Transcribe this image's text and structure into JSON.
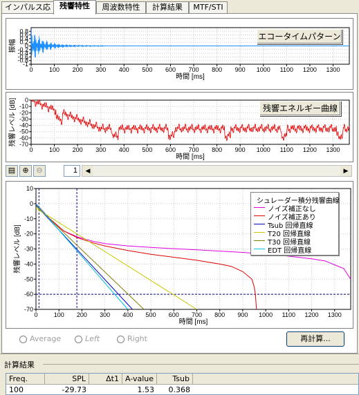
{
  "tabs": [
    {
      "label": "インパルス応答"
    },
    {
      "label": "残響特性"
    },
    {
      "label": "周波数特性"
    },
    {
      "label": "計算結果"
    },
    {
      "label": "MTF/STI"
    }
  ],
  "active_tab": "残響特性",
  "plot1": {
    "button_label": "エコータイムパターン",
    "xlabel": "時間 [ms]",
    "ylabel": "振幅",
    "yticks": [
      "0.8",
      "0.6",
      "0.4",
      "0.2",
      "0",
      "-0.2",
      "-0.4",
      "-0.6",
      "-0.8",
      "-1"
    ],
    "xticks": [
      "0",
      "100",
      "200",
      "300",
      "400",
      "500",
      "600",
      "700",
      "800",
      "900",
      "1000",
      "1100",
      "1200",
      "1300"
    ],
    "color": "#1e90ff"
  },
  "plot2": {
    "button_label": "残響エネルギー曲線",
    "xlabel": "時間 [ms]",
    "ylabel": "残響レベル [dB]",
    "yticks": [
      "0",
      "-10",
      "-20",
      "-30",
      "-40",
      "-50",
      "-60",
      "-70"
    ],
    "xticks": [
      "0",
      "100",
      "200",
      "300",
      "400",
      "500",
      "600",
      "700",
      "800",
      "900",
      "1000",
      "1100",
      "1200",
      "1300"
    ],
    "color": "#e00000"
  },
  "toolbar": {
    "page_value": "1",
    "fit_icon": "fit-window-icon",
    "zoom_in_icon": "zoom-in-icon",
    "zoom_out_icon": "zoom-out-icon"
  },
  "chart_data": {
    "type": "line",
    "title": "シュレーダー積分残響曲線",
    "xlabel": "時間 [ms]",
    "ylabel": "残響レベル [dB]",
    "xlim": [
      0,
      1370
    ],
    "ylim": [
      -70,
      10
    ],
    "yticks": [
      "10",
      "0",
      "-10",
      "-20",
      "-30",
      "-40",
      "-50",
      "-60",
      "-70"
    ],
    "xticks": [
      "0",
      "100",
      "200",
      "300",
      "400",
      "500",
      "600",
      "700",
      "800",
      "900",
      "1000",
      "1100",
      "1200",
      "1300"
    ],
    "legend_position": "top-right",
    "markers": {
      "vline_ms": [
        13,
        178
      ],
      "hline_db": -60
    },
    "series": [
      {
        "name": "ノイズ補正なし",
        "color": "#e000e0",
        "x": [
          0,
          60,
          120,
          180,
          250,
          300,
          400,
          500,
          600,
          700,
          800,
          900,
          1000,
          1100,
          1200,
          1260,
          1300,
          1340,
          1370
        ],
        "y": [
          0,
          -10,
          -18,
          -22,
          -25,
          -26.5,
          -28,
          -29,
          -29.8,
          -30.6,
          -31.4,
          -32.3,
          -33.4,
          -34.8,
          -36.5,
          -38,
          -40.5,
          -43,
          -50
        ]
      },
      {
        "name": "ノイズ補正あり",
        "color": "#e00000",
        "x": [
          0,
          60,
          120,
          180,
          250,
          300,
          400,
          500,
          600,
          700,
          800,
          850,
          900,
          940,
          950,
          955,
          960
        ],
        "y": [
          0,
          -10,
          -18,
          -22.5,
          -26,
          -28,
          -31,
          -33.5,
          -35.5,
          -37.5,
          -40,
          -41.5,
          -45,
          -50,
          -55,
          -60,
          -70
        ]
      },
      {
        "name": "Tsub 回帰直線",
        "color": "#0000c0",
        "x": [
          0,
          420
        ],
        "y": [
          -1,
          -70
        ]
      },
      {
        "name": "T20 回帰直線",
        "color": "#c8c800",
        "x": [
          0,
          700
        ],
        "y": [
          -3,
          -70
        ]
      },
      {
        "name": "T30 回帰直線",
        "color": "#808000",
        "x": [
          0,
          470
        ],
        "y": [
          -1.5,
          -70
        ]
      },
      {
        "name": "EDT 回帰直線",
        "color": "#00c0e0",
        "x": [
          0,
          400
        ],
        "y": [
          0,
          -70
        ]
      }
    ]
  },
  "options": {
    "average_label": "Average",
    "left_label": "Left",
    "right_label": "Right",
    "recalc_label": "再計算..."
  },
  "results": {
    "title": "計算結果",
    "columns": [
      "Freq.",
      "SPL",
      "Δt1",
      "A-value",
      "Tsub"
    ],
    "row": [
      "100",
      "-29.73",
      "",
      "1.53",
      "0.368"
    ]
  }
}
